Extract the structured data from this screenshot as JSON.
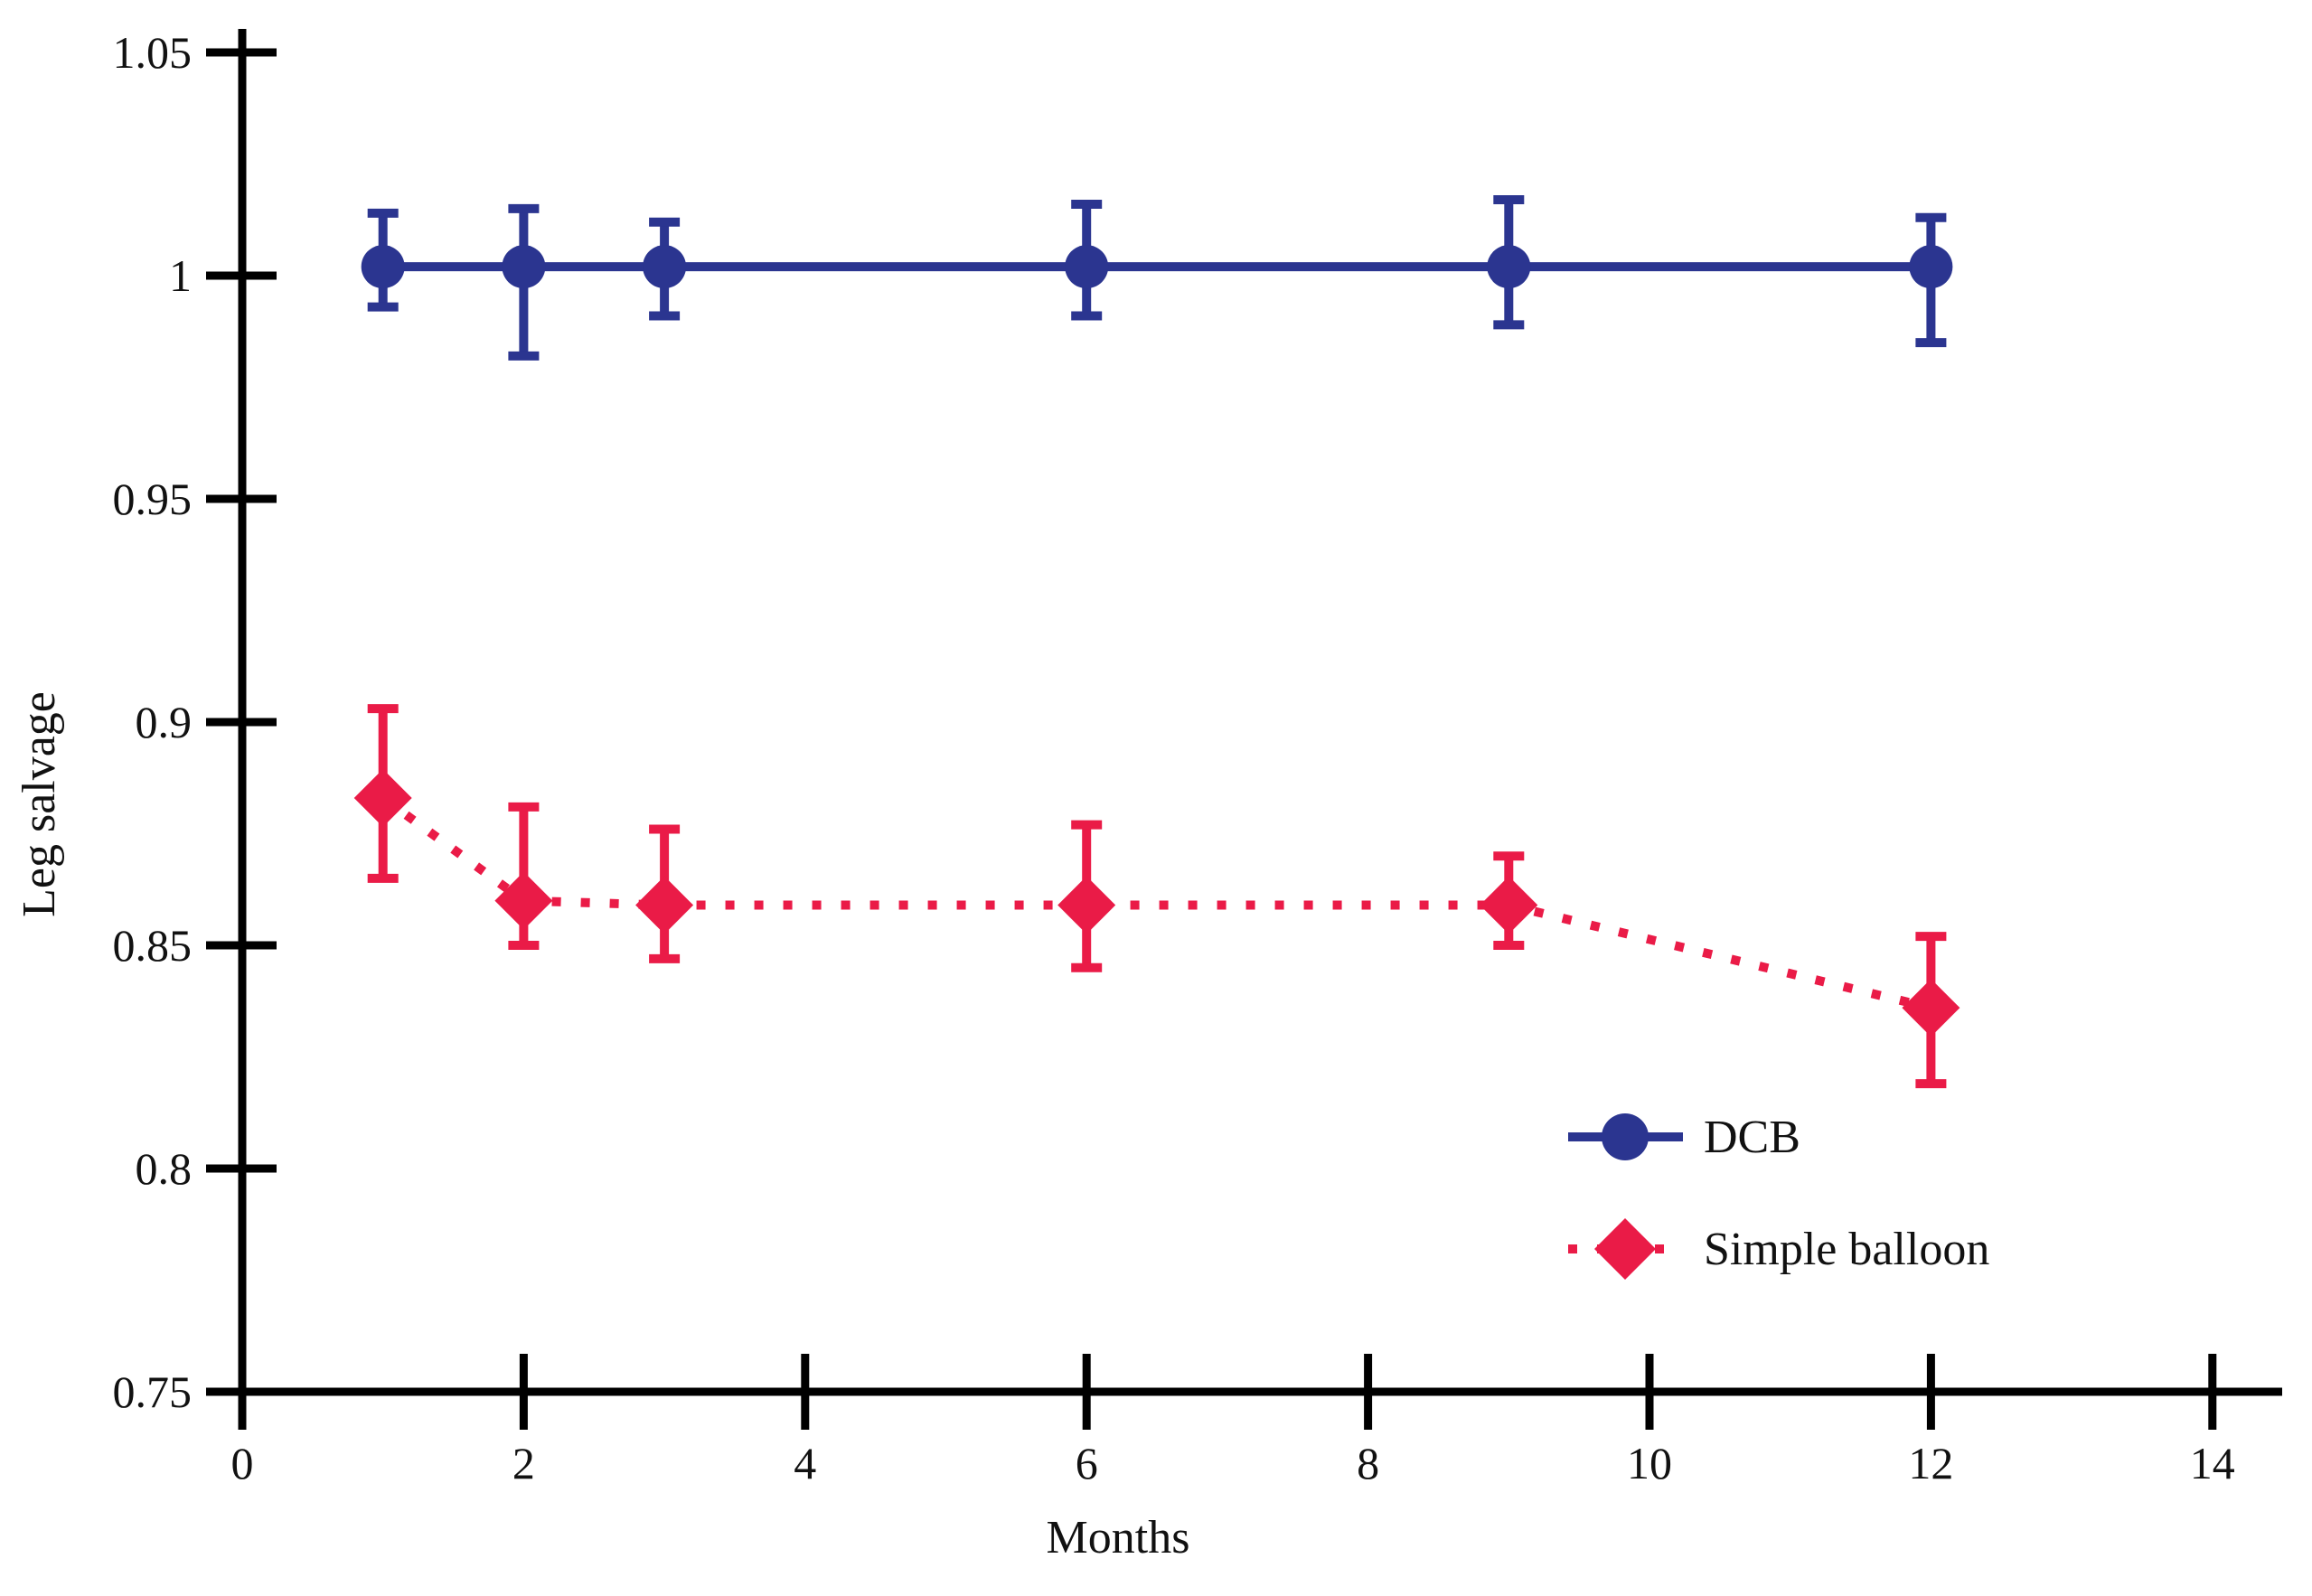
{
  "figure": {
    "background": "#ffffff",
    "axis_color": "#000000",
    "text_color": "#111111"
  },
  "chart_data": {
    "type": "line",
    "title": "",
    "xlabel": "Months",
    "ylabel": "Leg salvage",
    "xlim": [
      0,
      14.8
    ],
    "ylim": [
      0.75,
      1.06
    ],
    "grid": false,
    "x_ticks": [
      0,
      2,
      4,
      6,
      8,
      10,
      12,
      14
    ],
    "x_tick_labels": [
      "0",
      "2",
      "4",
      "6",
      "8",
      "10",
      "12",
      "14"
    ],
    "y_ticks": [
      0.75,
      0.8,
      0.85,
      0.9,
      0.95,
      1.0,
      1.05
    ],
    "y_tick_labels": [
      "0.75",
      "0.8",
      "0.85",
      "0.9",
      "0.95",
      "1",
      "1.05"
    ],
    "x": [
      1,
      2,
      3,
      6,
      9,
      12
    ],
    "series": [
      {
        "name": "DCB",
        "color": "#2b3590",
        "marker": "circle",
        "line_style": "solid",
        "values": [
          1.002,
          1.002,
          1.002,
          1.002,
          1.002,
          1.002
        ],
        "err_low": [
          0.993,
          0.982,
          0.991,
          0.991,
          0.989,
          0.985
        ],
        "err_high": [
          1.014,
          1.015,
          1.012,
          1.016,
          1.017,
          1.013
        ]
      },
      {
        "name": "Simple balloon",
        "color": "#ea1b47",
        "marker": "diamond",
        "line_style": "dotted",
        "values": [
          0.883,
          0.86,
          0.859,
          0.859,
          0.859,
          0.836
        ],
        "err_low": [
          0.865,
          0.85,
          0.847,
          0.845,
          0.85,
          0.819
        ],
        "err_high": [
          0.903,
          0.881,
          0.876,
          0.877,
          0.87,
          0.852
        ]
      }
    ],
    "legend": {
      "position": "lower right",
      "entries": [
        "DCB",
        "Simple balloon"
      ]
    }
  }
}
